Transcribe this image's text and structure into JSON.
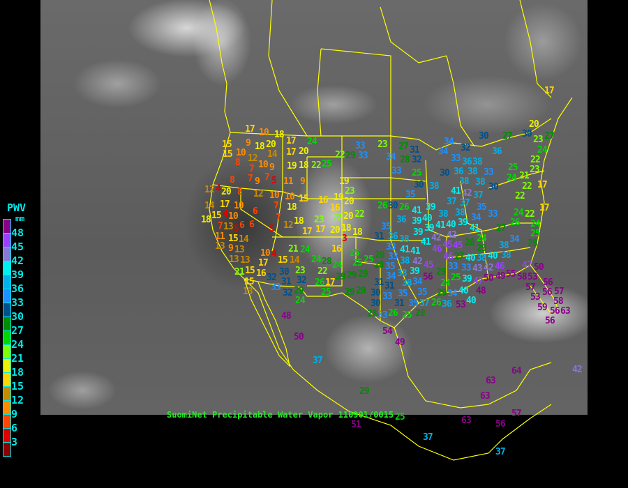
{
  "legend": {
    "title": "PWV",
    "unit": "mm",
    "ticks": [
      "48",
      "45",
      "42",
      "39",
      "36",
      "33",
      "30",
      "27",
      "24",
      "21",
      "18",
      "15",
      "12",
      "9",
      "6",
      "3"
    ],
    "colors": [
      "#8b008b",
      "#9b40ff",
      "#8878d8",
      "#00f0f0",
      "#00b0e8",
      "#1e90ff",
      "#00508c",
      "#008c00",
      "#00d800",
      "#80ff00",
      "#f0f000",
      "#ffd700",
      "#c88a00",
      "#ff8c00",
      "#ff4500",
      "#e00000",
      "#8b0000"
    ]
  },
  "caption": "SuomiNet Precipitable Water Vapor 110901/0015",
  "map": {
    "border_color": "#ffff00",
    "background": "GOES IR satellite image"
  },
  "station_values": [
    "17",
    "10",
    "18",
    "15",
    "9",
    "18",
    "20",
    "14",
    "17",
    "24",
    "17",
    "20",
    "15",
    "10",
    "12",
    "8",
    "10",
    "9",
    "7",
    "7",
    "7",
    "5",
    "19",
    "18",
    "22",
    "25",
    "22",
    "29",
    "33",
    "8",
    "9",
    "11",
    "9",
    "12",
    "4",
    "20",
    "8",
    "12",
    "10",
    "10",
    "15",
    "19",
    "23",
    "16",
    "19",
    "20",
    "16",
    "14",
    "17",
    "10",
    "7",
    "18",
    "15",
    "4",
    "10",
    "6",
    "22",
    "20",
    "22",
    "18",
    "13",
    "7",
    "18",
    "23",
    "7",
    "5",
    "6",
    "6",
    "12",
    "11",
    "15",
    "5",
    "17",
    "17",
    "20",
    "18",
    "3",
    "18",
    "13",
    "9",
    "14",
    "13",
    "21",
    "24",
    "16",
    "13",
    "10",
    "4",
    "15",
    "14",
    "24",
    "28",
    "24",
    "25",
    "25",
    "28",
    "13",
    "15",
    "17",
    "23",
    "22",
    "21",
    "15",
    "16",
    "32",
    "30",
    "31",
    "32",
    "29",
    "29",
    "13",
    "33",
    "32",
    "29",
    "26",
    "17",
    "31",
    "24",
    "25",
    "29",
    "30",
    "30",
    "27",
    "30",
    "23",
    "27",
    "20",
    "23",
    "27",
    "31",
    "34",
    "32",
    "36",
    "33",
    "34",
    "28",
    "32",
    "34",
    "24",
    "22",
    "33",
    "36",
    "38",
    "36",
    "38",
    "38",
    "33",
    "38",
    "33",
    "25",
    "30",
    "25",
    "24",
    "21",
    "23",
    "30",
    "38",
    "35",
    "41",
    "42",
    "30",
    "22",
    "22",
    "17",
    "37",
    "37",
    "37",
    "26",
    "30",
    "26",
    "41",
    "39",
    "38",
    "35",
    "34",
    "33",
    "38",
    "24",
    "22",
    "17",
    "36",
    "39",
    "40",
    "39",
    "39",
    "41",
    "40",
    "42",
    "41",
    "26",
    "24",
    "25",
    "27",
    "35",
    "31",
    "36",
    "39",
    "42",
    "45",
    "24",
    "41",
    "46",
    "46",
    "45",
    "28",
    "29",
    "34",
    "28",
    "38",
    "33",
    "41",
    "33",
    "38",
    "38",
    "27",
    "41",
    "42",
    "38",
    "38",
    "40",
    "40",
    "42",
    "33",
    "25",
    "35",
    "34",
    "39",
    "45",
    "28",
    "33",
    "43",
    "46",
    "47",
    "29",
    "38",
    "38",
    "56",
    "29",
    "25",
    "39",
    "47",
    "48",
    "50",
    "49",
    "55",
    "58",
    "53",
    "50",
    "34",
    "24",
    "29",
    "31",
    "33",
    "35",
    "35",
    "26",
    "34",
    "40",
    "40",
    "57",
    "56",
    "53",
    "56",
    "57",
    "58",
    "29",
    "30",
    "35",
    "37",
    "36",
    "53",
    "31",
    "59",
    "56",
    "63",
    "28",
    "33",
    "26",
    "25",
    "28",
    "56",
    "48",
    "50",
    "54",
    "49",
    "37",
    "29",
    "63",
    "64",
    "63",
    "42",
    "63",
    "56",
    "57",
    "37",
    "37",
    "51",
    "25",
    "17"
  ]
}
